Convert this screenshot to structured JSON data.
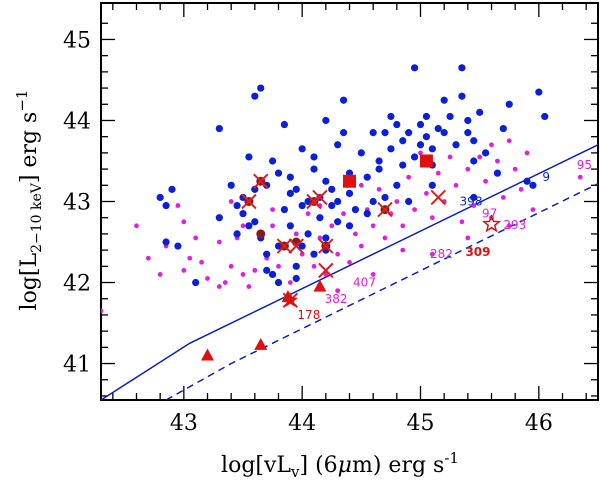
{
  "chart_data": {
    "type": "scatter",
    "title": "",
    "xlabel": "log[vL_v] (6μm) erg s^-1",
    "ylabel": "log[L_2-10 keV] erg s^-1",
    "xlim": [
      42.3,
      46.5
    ],
    "ylim": [
      40.55,
      45.45
    ],
    "xticks": [
      43,
      44,
      45,
      46
    ],
    "yticks": [
      41,
      42,
      43,
      44,
      45
    ],
    "colors": {
      "blue": "#0a1fd8",
      "magenta": "#e020e0",
      "red": "#e01010",
      "darkred": "#8b1a1a",
      "line": "#0a1fbf"
    },
    "relations": [
      {
        "name": "solid-relation",
        "style": "solid",
        "points": [
          [
            42.3,
            40.55
          ],
          [
            43.05,
            41.25
          ],
          [
            46.5,
            43.7
          ]
        ]
      },
      {
        "name": "dashed-relation",
        "style": "dashed",
        "points": [
          [
            42.85,
            40.55
          ],
          [
            43.4,
            41.0
          ],
          [
            46.5,
            43.22
          ]
        ]
      }
    ],
    "series": [
      {
        "name": "blue-dots",
        "marker": "circle",
        "color": "#0a1fd8",
        "points": [
          [
            42.8,
            43.05
          ],
          [
            42.85,
            42.95
          ],
          [
            42.9,
            43.15
          ],
          [
            42.85,
            42.5
          ],
          [
            42.95,
            42.45
          ],
          [
            43.1,
            42.0
          ],
          [
            43.3,
            43.9
          ],
          [
            43.3,
            42.8
          ],
          [
            43.4,
            43.2
          ],
          [
            43.45,
            42.95
          ],
          [
            43.5,
            43.05
          ],
          [
            43.55,
            42.7
          ],
          [
            43.55,
            43.55
          ],
          [
            43.6,
            44.3
          ],
          [
            43.6,
            42.75
          ],
          [
            43.65,
            44.4
          ],
          [
            43.65,
            42.55
          ],
          [
            43.7,
            43.2
          ],
          [
            43.7,
            42.35
          ],
          [
            43.75,
            43.5
          ],
          [
            43.75,
            42.1
          ],
          [
            43.8,
            42.0
          ],
          [
            43.8,
            42.45
          ],
          [
            43.85,
            42.9
          ],
          [
            43.85,
            43.95
          ],
          [
            43.9,
            43.3
          ],
          [
            43.9,
            42.7
          ],
          [
            43.95,
            43.15
          ],
          [
            43.95,
            42.2
          ],
          [
            44.0,
            43.65
          ],
          [
            44.0,
            42.95
          ],
          [
            44.05,
            42.6
          ],
          [
            44.05,
            43.0
          ],
          [
            44.1,
            43.4
          ],
          [
            44.1,
            42.35
          ],
          [
            44.15,
            43.05
          ],
          [
            44.15,
            42.8
          ],
          [
            44.2,
            44.0
          ],
          [
            44.2,
            42.55
          ],
          [
            44.2,
            43.25
          ],
          [
            44.25,
            42.95
          ],
          [
            44.3,
            43.7
          ],
          [
            44.3,
            42.75
          ],
          [
            44.35,
            43.85
          ],
          [
            44.35,
            44.25
          ],
          [
            44.4,
            42.7
          ],
          [
            44.4,
            43.1
          ],
          [
            44.45,
            42.9
          ],
          [
            44.5,
            43.6
          ],
          [
            44.55,
            43.3
          ],
          [
            44.55,
            42.85
          ],
          [
            44.6,
            43.85
          ],
          [
            44.65,
            43.5
          ],
          [
            44.7,
            43.05
          ],
          [
            44.7,
            43.85
          ],
          [
            44.75,
            43.65
          ],
          [
            44.75,
            44.05
          ],
          [
            44.8,
            43.2
          ],
          [
            44.8,
            43.95
          ],
          [
            44.85,
            43.75
          ],
          [
            44.85,
            43.45
          ],
          [
            44.9,
            43.85
          ],
          [
            44.9,
            43.0
          ],
          [
            44.95,
            44.65
          ],
          [
            44.95,
            43.55
          ],
          [
            45.0,
            43.95
          ],
          [
            45.0,
            43.7
          ],
          [
            45.05,
            44.05
          ],
          [
            45.05,
            43.8
          ],
          [
            45.1,
            43.45
          ],
          [
            45.1,
            43.65
          ],
          [
            45.15,
            43.9
          ],
          [
            45.2,
            44.25
          ],
          [
            45.2,
            43.85
          ],
          [
            45.25,
            44.05
          ],
          [
            45.3,
            43.7
          ],
          [
            45.35,
            44.3
          ],
          [
            45.35,
            44.65
          ],
          [
            45.4,
            43.85
          ],
          [
            45.4,
            44.0
          ],
          [
            45.45,
            43.5
          ],
          [
            45.45,
            43.75
          ],
          [
            45.5,
            44.1
          ],
          [
            45.55,
            43.6
          ],
          [
            45.65,
            43.35
          ],
          [
            45.7,
            43.9
          ],
          [
            45.75,
            44.2
          ],
          [
            45.9,
            43.25
          ],
          [
            45.95,
            43.2
          ],
          [
            46.0,
            44.35
          ],
          [
            46.05,
            44.05
          ],
          [
            45.45,
            43.05
          ],
          [
            45.1,
            43.2
          ],
          [
            44.6,
            43.0
          ],
          [
            44.3,
            43.0
          ],
          [
            43.95,
            42.05
          ],
          [
            43.45,
            42.6
          ],
          [
            44.0,
            42.45
          ],
          [
            44.2,
            42.4
          ],
          [
            43.7,
            42.15
          ],
          [
            43.9,
            43.1
          ],
          [
            44.1,
            43.55
          ],
          [
            43.8,
            43.35
          ],
          [
            44.4,
            43.35
          ],
          [
            44.25,
            43.15
          ],
          [
            43.5,
            42.85
          ],
          [
            43.6,
            43.15
          ],
          [
            44.65,
            43.4
          ]
        ]
      },
      {
        "name": "magenta-dots",
        "marker": "circle-small",
        "color": "#e020e0",
        "points": [
          [
            42.3,
            41.65
          ],
          [
            42.6,
            42.7
          ],
          [
            42.7,
            42.3
          ],
          [
            42.8,
            42.1
          ],
          [
            42.85,
            42.45
          ],
          [
            42.95,
            42.95
          ],
          [
            43.0,
            42.15
          ],
          [
            43.05,
            42.3
          ],
          [
            43.1,
            42.55
          ],
          [
            43.15,
            42.25
          ],
          [
            43.2,
            42.05
          ],
          [
            43.3,
            42.5
          ],
          [
            43.35,
            42.0
          ],
          [
            43.4,
            42.2
          ],
          [
            43.45,
            42.55
          ],
          [
            43.5,
            42.7
          ],
          [
            43.5,
            42.1
          ],
          [
            43.55,
            41.95
          ],
          [
            43.6,
            42.15
          ],
          [
            43.65,
            42.6
          ],
          [
            43.7,
            42.3
          ],
          [
            43.75,
            42.7
          ],
          [
            43.8,
            42.2
          ],
          [
            43.85,
            42.45
          ],
          [
            43.9,
            42.0
          ],
          [
            43.95,
            42.6
          ],
          [
            44.0,
            42.35
          ],
          [
            44.05,
            42.85
          ],
          [
            44.1,
            42.2
          ],
          [
            44.15,
            42.55
          ],
          [
            44.2,
            42.1
          ],
          [
            44.25,
            42.7
          ],
          [
            44.3,
            42.35
          ],
          [
            44.35,
            42.85
          ],
          [
            44.4,
            42.25
          ],
          [
            44.45,
            42.6
          ],
          [
            44.5,
            42.45
          ],
          [
            44.55,
            42.9
          ],
          [
            44.6,
            42.7
          ],
          [
            44.65,
            43.15
          ],
          [
            44.7,
            42.55
          ],
          [
            44.75,
            42.85
          ],
          [
            44.8,
            43.0
          ],
          [
            44.85,
            42.7
          ],
          [
            44.9,
            43.3
          ],
          [
            44.95,
            42.9
          ],
          [
            45.0,
            43.6
          ],
          [
            45.05,
            43.1
          ],
          [
            45.1,
            42.8
          ],
          [
            45.15,
            43.35
          ],
          [
            45.2,
            43.0
          ],
          [
            45.25,
            43.55
          ],
          [
            45.3,
            43.2
          ],
          [
            45.35,
            42.75
          ],
          [
            45.4,
            43.4
          ],
          [
            45.45,
            42.95
          ],
          [
            45.5,
            43.55
          ],
          [
            45.55,
            43.25
          ],
          [
            45.6,
            43.7
          ],
          [
            45.65,
            43.5
          ],
          [
            45.7,
            43.05
          ],
          [
            45.75,
            43.75
          ],
          [
            45.8,
            43.4
          ],
          [
            45.85,
            43.15
          ],
          [
            45.9,
            43.6
          ],
          [
            45.6,
            42.8
          ],
          [
            45.75,
            42.7
          ],
          [
            45.4,
            42.55
          ],
          [
            45.1,
            42.35
          ],
          [
            44.3,
            41.9
          ],
          [
            44.6,
            42.1
          ],
          [
            43.3,
            41.95
          ],
          [
            43.0,
            42.75
          ],
          [
            43.4,
            43.0
          ],
          [
            43.75,
            42.9
          ],
          [
            44.15,
            42.95
          ],
          [
            44.5,
            43.2
          ],
          [
            46.35,
            43.3
          ],
          [
            45.95,
            42.9
          ],
          [
            44.85,
            42.4
          ]
        ]
      },
      {
        "name": "red-squares",
        "marker": "square",
        "color": "#e01010",
        "points": [
          [
            44.4,
            43.25
          ],
          [
            45.05,
            43.5
          ]
        ]
      },
      {
        "name": "red-triangles",
        "marker": "triangle",
        "color": "#e01010",
        "points": [
          [
            43.2,
            41.1
          ],
          [
            43.65,
            41.23
          ],
          [
            43.88,
            41.82
          ],
          [
            44.15,
            41.95
          ]
        ]
      },
      {
        "name": "red-crosses",
        "marker": "cross",
        "color": "#d82020",
        "points": [
          [
            43.55,
            43.0
          ],
          [
            43.65,
            43.25
          ],
          [
            43.85,
            42.45
          ],
          [
            43.95,
            42.45
          ],
          [
            44.1,
            43.0
          ],
          [
            44.15,
            43.05
          ],
          [
            44.2,
            42.45
          ],
          [
            44.2,
            42.15
          ],
          [
            44.7,
            42.9
          ],
          [
            45.15,
            43.05
          ],
          [
            43.9,
            41.78
          ]
        ]
      },
      {
        "name": "circled-crosses",
        "marker": "circled",
        "color": "#8b1a1a",
        "points": [
          [
            43.55,
            43.0
          ],
          [
            43.65,
            43.25
          ],
          [
            43.65,
            42.6
          ],
          [
            43.85,
            42.45
          ],
          [
            43.95,
            42.5
          ],
          [
            44.2,
            42.45
          ],
          [
            44.7,
            42.9
          ],
          [
            44.1,
            43.0
          ]
        ]
      },
      {
        "name": "red-star",
        "marker": "star",
        "color": "#e01010",
        "points": [
          [
            43.9,
            41.78
          ]
        ]
      },
      {
        "name": "open-star",
        "marker": "star-open",
        "color": "#e01010",
        "points": [
          [
            45.6,
            42.72
          ]
        ]
      }
    ],
    "annotations": [
      {
        "text": "9",
        "x": 46.03,
        "y": 43.25,
        "color": "#0a1fd8",
        "size": 13
      },
      {
        "text": "95",
        "x": 46.32,
        "y": 43.4,
        "color": "#e020e0",
        "size": 13
      },
      {
        "text": "398",
        "x": 45.33,
        "y": 42.95,
        "color": "#0a1fd8",
        "size": 12
      },
      {
        "text": "97",
        "x": 45.52,
        "y": 42.8,
        "color": "#e020e0",
        "size": 12
      },
      {
        "text": "293",
        "x": 45.7,
        "y": 42.66,
        "color": "#e020e0",
        "size": 12
      },
      {
        "text": "282",
        "x": 45.08,
        "y": 42.3,
        "color": "#e020e0",
        "size": 12
      },
      {
        "text": "309",
        "x": 45.38,
        "y": 42.33,
        "color": "#e01010",
        "size": 15,
        "bold": true
      },
      {
        "text": "407",
        "x": 44.43,
        "y": 41.95,
        "color": "#e020e0",
        "size": 12
      },
      {
        "text": "382",
        "x": 44.19,
        "y": 41.75,
        "color": "#e020e0",
        "size": 12
      },
      {
        "text": "178",
        "x": 43.96,
        "y": 41.55,
        "color": "#e01010",
        "size": 12
      }
    ]
  }
}
